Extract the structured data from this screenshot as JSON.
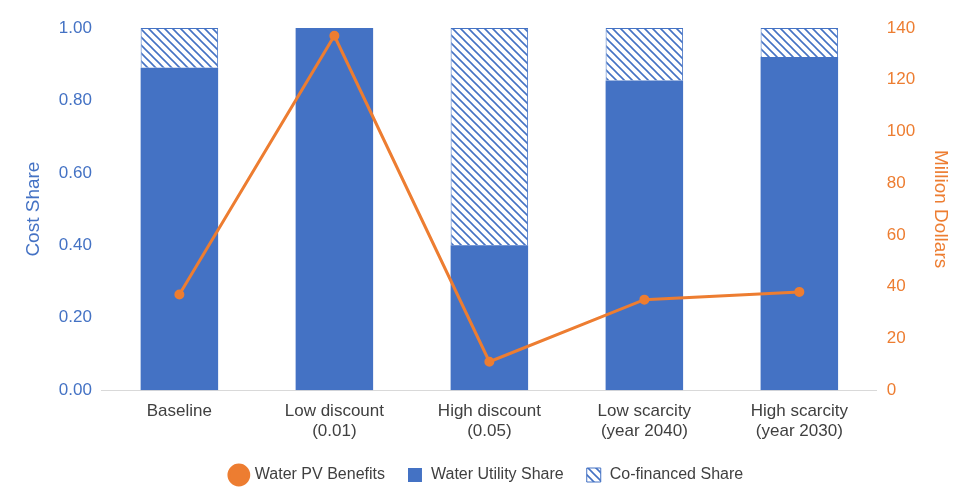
{
  "chart_data": {
    "type": "bar",
    "stacked": true,
    "grid": false,
    "legend": "bottom",
    "y_label": "Cost Share",
    "y2_label": "Million Dollars",
    "categories": [
      "Baseline",
      "Low discount (0.01)",
      "High discount (0.05)",
      "Low scarcity (year 2040)",
      "High scarcity (year 2030)"
    ],
    "series": [
      {
        "name": "Water Utility Share",
        "type": "bar",
        "color": "#4472c4",
        "values": [
          0.89,
          1.0,
          0.4,
          0.855,
          0.92
        ]
      },
      {
        "name": "Co-financed Share",
        "type": "bar",
        "color": "#4472c4",
        "values": [
          0.11,
          0.0,
          0.6,
          0.145,
          0.08
        ]
      },
      {
        "name": "Water PV Benefits",
        "type": "line",
        "axis": "y2",
        "color": "#ed7d31",
        "marker": "circle",
        "values": [
          37,
          137,
          11,
          35,
          38
        ]
      }
    ],
    "ylim": [
      0,
      1
    ],
    "yticks": [
      {
        "value": 0,
        "label": "0.00"
      },
      {
        "value": 0.2,
        "label": "0.20"
      },
      {
        "value": 0.4,
        "label": "0.40"
      },
      {
        "value": 0.6,
        "label": "0.60"
      },
      {
        "value": 0.8,
        "label": "0.80"
      },
      {
        "value": 1,
        "label": "1.00"
      }
    ],
    "y2lim": [
      0,
      140
    ],
    "y2ticks": [
      0,
      20,
      40,
      60,
      80,
      100,
      120,
      140
    ]
  }
}
